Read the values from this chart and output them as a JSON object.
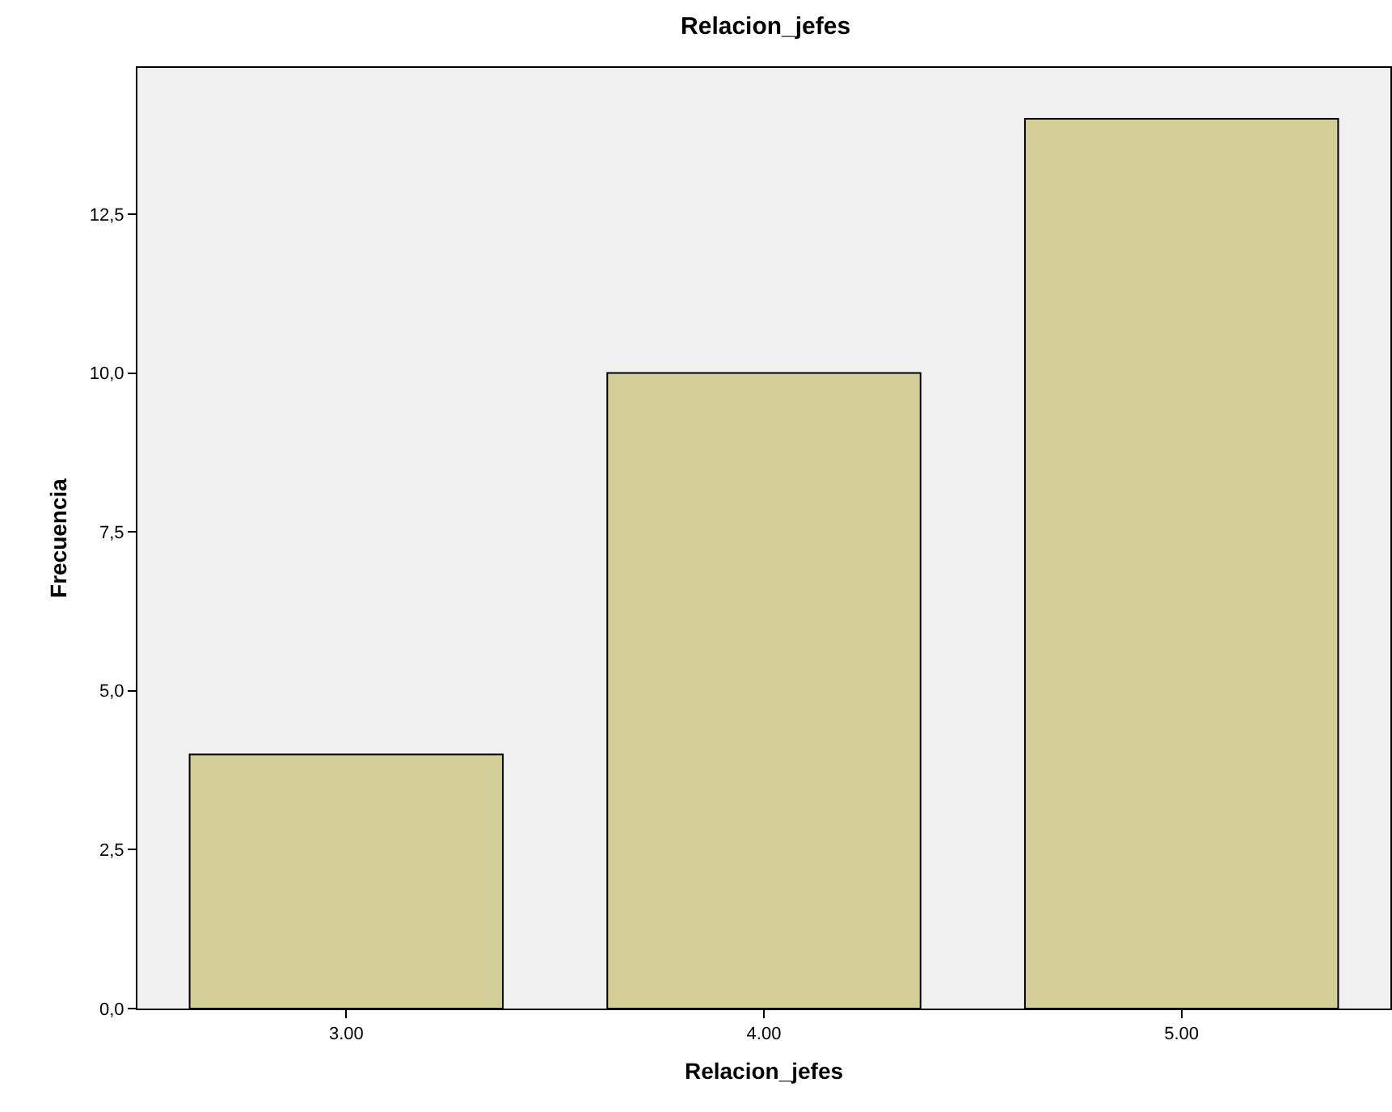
{
  "chart_data": {
    "type": "bar",
    "title": "Relacion_jefes",
    "xlabel": "Relacion_jefes",
    "ylabel": "Frecuencia",
    "categories": [
      "3.00",
      "4.00",
      "5.00"
    ],
    "values": [
      4,
      10,
      14
    ],
    "color": "#d3ce97",
    "ylim": [
      0,
      14.8
    ],
    "yticks": [
      {
        "value": 0,
        "label": "0,0"
      },
      {
        "value": 2.5,
        "label": "2,5"
      },
      {
        "value": 5,
        "label": "5,0"
      },
      {
        "value": 7.5,
        "label": "7,5"
      },
      {
        "value": 10,
        "label": "10,0"
      },
      {
        "value": 12.5,
        "label": "12,5"
      }
    ],
    "grid": false
  }
}
